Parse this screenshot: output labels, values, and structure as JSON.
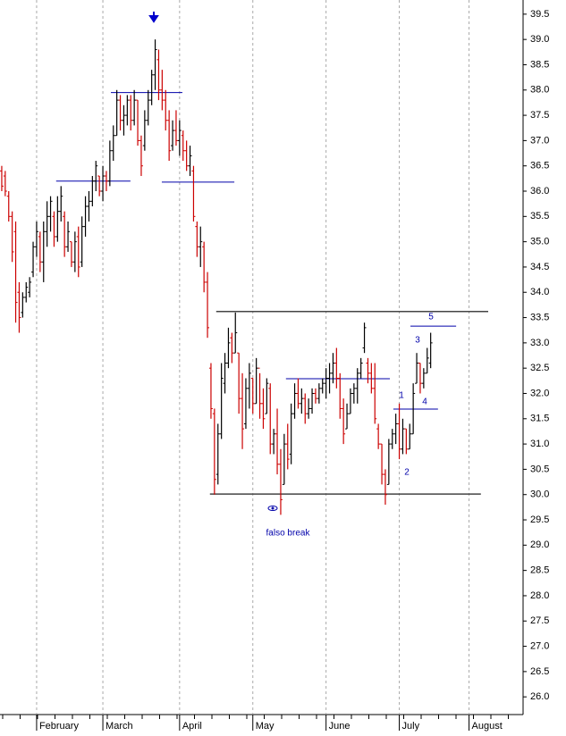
{
  "chart_data": {
    "type": "ohlc",
    "x": [
      0,
      1,
      2,
      3,
      4,
      5,
      6,
      7,
      8,
      9,
      10,
      11,
      12,
      13,
      14,
      15,
      16,
      17,
      18,
      19,
      20,
      21,
      22,
      23,
      24,
      25,
      26,
      27,
      28,
      29,
      30,
      31,
      32,
      33,
      34,
      35,
      36,
      37,
      38,
      39,
      40,
      41,
      42,
      43,
      44,
      45,
      46,
      47,
      48,
      49,
      50,
      51,
      52,
      53,
      54,
      55,
      56,
      57,
      58,
      59,
      60,
      61,
      62,
      63,
      64,
      65,
      66,
      67,
      68,
      69,
      70,
      71,
      72,
      73,
      74,
      75,
      76,
      77,
      78,
      79,
      80,
      81,
      82,
      83,
      84,
      85,
      86,
      87,
      88,
      89,
      90,
      91,
      92,
      93,
      94,
      95,
      96,
      97,
      98,
      99,
      100,
      101,
      102,
      103,
      104,
      105,
      106,
      107,
      108,
      109,
      110,
      111,
      112,
      113,
      114,
      115,
      116,
      117,
      118,
      119,
      120,
      121,
      122,
      123
    ],
    "open": [
      36.4,
      36.3,
      35.9,
      35.5,
      35.2,
      34.0,
      33.6,
      33.9,
      34.0,
      34.4,
      34.9,
      35.1,
      34.6,
      35.2,
      35.5,
      35.5,
      35.1,
      35.6,
      35.5,
      34.9,
      35.0,
      34.6,
      35.1,
      34.6,
      35.3,
      35.7,
      35.8,
      36.2,
      36.3,
      36.0,
      36.3,
      36.2,
      36.8,
      37.1,
      37.8,
      37.4,
      37.5,
      37.8,
      37.4,
      37.8,
      37.0,
      36.9,
      37.4,
      37.8,
      38.3,
      38.6,
      38.0,
      37.8,
      37.4,
      36.9,
      37.2,
      37.0,
      37.1,
      36.8,
      36.5,
      36.4,
      35.3,
      34.9,
      34.9,
      34.2,
      32.5,
      31.6,
      30.4,
      31.2,
      32.2,
      32.6,
      33.1,
      32.8,
      32.8,
      31.9,
      31.4,
      32.1,
      32.3,
      31.8,
      32.5,
      31.8,
      31.6,
      32.1,
      31.0,
      31.2,
      30.6,
      30.2,
      31.0,
      30.8,
      31.6,
      32.0,
      31.8,
      31.9,
      31.6,
      31.7,
      32.0,
      31.9,
      32.1,
      32.2,
      32.3,
      32.4,
      32.6,
      32.3,
      31.7,
      31.3,
      31.6,
      32.0,
      32.1,
      32.4,
      32.9,
      32.6,
      32.4,
      32.1,
      31.3,
      31.0,
      30.4,
      30.2,
      31.0,
      31.2,
      31.4,
      30.9,
      31.3,
      30.9,
      31.2,
      32.2,
      32.6,
      32.2,
      32.4,
      32.6
    ],
    "high": [
      36.5,
      36.4,
      36.0,
      35.6,
      35.4,
      34.2,
      34.0,
      34.2,
      34.3,
      35.0,
      35.4,
      35.2,
      35.4,
      35.8,
      35.9,
      35.6,
      35.9,
      36.1,
      35.6,
      35.4,
      35.0,
      35.2,
      35.3,
      35.5,
      35.9,
      36.0,
      36.3,
      36.6,
      36.3,
      36.5,
      36.4,
      37.0,
      37.3,
      38.0,
      37.9,
      37.7,
      37.9,
      37.9,
      38.0,
      37.8,
      37.1,
      37.6,
      38.0,
      38.4,
      39.0,
      38.8,
      38.4,
      38.0,
      37.6,
      37.4,
      37.6,
      37.4,
      37.2,
      37.0,
      36.9,
      36.5,
      35.4,
      35.3,
      35.0,
      34.4,
      32.6,
      31.7,
      31.4,
      32.6,
      32.8,
      33.3,
      33.2,
      33.6,
      32.8,
      32.4,
      32.3,
      32.6,
      32.3,
      32.7,
      32.4,
      32.1,
      32.3,
      32.2,
      31.3,
      31.7,
      30.9,
      31.2,
      31.4,
      31.8,
      32.2,
      32.3,
      32.1,
      32.0,
      31.9,
      32.1,
      32.1,
      32.2,
      32.3,
      32.5,
      32.6,
      32.8,
      32.9,
      32.4,
      31.9,
      31.8,
      32.1,
      32.2,
      32.5,
      32.7,
      33.4,
      32.7,
      32.6,
      32.6,
      31.4,
      31.0,
      30.5,
      31.1,
      31.3,
      31.6,
      31.8,
      31.5,
      31.3,
      31.4,
      32.2,
      32.8,
      32.6,
      32.5,
      32.9,
      33.2
    ],
    "low": [
      36.0,
      35.9,
      35.4,
      34.6,
      33.4,
      33.2,
      33.5,
      33.8,
      33.9,
      34.3,
      34.7,
      34.4,
      34.2,
      34.9,
      35.2,
      34.9,
      35.0,
      35.4,
      34.7,
      34.8,
      34.5,
      34.4,
      34.3,
      34.5,
      35.1,
      35.4,
      35.7,
      36.0,
      35.9,
      35.8,
      36.0,
      36.1,
      36.6,
      37.1,
      37.2,
      37.1,
      37.3,
      37.2,
      37.3,
      36.9,
      36.3,
      36.8,
      37.3,
      37.7,
      38.0,
      37.8,
      37.6,
      37.2,
      36.6,
      36.8,
      36.9,
      36.7,
      36.6,
      36.4,
      36.3,
      35.4,
      34.7,
      34.5,
      34.0,
      33.1,
      31.5,
      30.0,
      30.2,
      31.1,
      32.0,
      32.5,
      32.6,
      32.8,
      31.6,
      30.9,
      31.3,
      31.7,
      31.6,
      31.8,
      31.5,
      31.3,
      31.6,
      30.8,
      30.8,
      30.4,
      29.6,
      30.2,
      30.5,
      30.6,
      31.5,
      31.7,
      31.6,
      31.4,
      31.5,
      31.6,
      31.8,
      31.8,
      32.0,
      31.9,
      32.0,
      32.2,
      32.1,
      31.5,
      31.0,
      31.3,
      31.6,
      31.8,
      31.8,
      32.3,
      32.8,
      32.2,
      32.0,
      31.4,
      30.9,
      30.2,
      29.8,
      30.2,
      30.9,
      31.0,
      30.7,
      30.8,
      30.8,
      30.9,
      31.2,
      32.2,
      32.0,
      32.1,
      32.4,
      32.5
    ],
    "close": [
      36.1,
      36.0,
      35.5,
      34.8,
      33.8,
      33.5,
      33.9,
      34.1,
      34.2,
      34.9,
      35.2,
      34.6,
      35.2,
      35.5,
      35.8,
      35.1,
      35.6,
      35.9,
      34.9,
      35.2,
      34.6,
      35.0,
      34.5,
      35.3,
      35.7,
      35.8,
      36.2,
      36.5,
      36.0,
      36.3,
      36.2,
      36.8,
      37.1,
      37.8,
      37.4,
      37.5,
      37.8,
      37.4,
      37.8,
      37.0,
      36.5,
      37.4,
      37.8,
      38.3,
      38.8,
      38.0,
      37.8,
      37.4,
      36.8,
      37.2,
      37.0,
      37.2,
      36.8,
      36.5,
      36.7,
      35.5,
      34.9,
      35.0,
      34.2,
      33.3,
      31.7,
      30.3,
      31.2,
      32.3,
      32.6,
      33.0,
      32.8,
      33.2,
      31.9,
      31.3,
      32.1,
      32.4,
      31.8,
      32.5,
      31.8,
      31.5,
      32.2,
      31.0,
      31.2,
      30.6,
      29.9,
      31.0,
      30.7,
      31.6,
      32.0,
      31.8,
      31.9,
      31.6,
      31.7,
      32.0,
      31.9,
      32.1,
      32.2,
      32.3,
      32.4,
      32.6,
      32.3,
      31.7,
      31.2,
      31.6,
      32.0,
      32.1,
      32.4,
      32.6,
      33.3,
      32.4,
      32.1,
      31.5,
      31.0,
      30.4,
      30.0,
      31.0,
      31.2,
      31.4,
      30.9,
      31.3,
      30.9,
      31.2,
      32.0,
      32.6,
      32.2,
      32.4,
      32.7,
      33.0
    ],
    "up_color": "#000000",
    "down_color": "#cc0000",
    "xlim": [
      -0.5,
      149.5
    ],
    "xticks": [
      {
        "value": 10,
        "label": "February"
      },
      {
        "value": 29,
        "label": "March"
      },
      {
        "value": 51,
        "label": "April"
      },
      {
        "value": 72,
        "label": "May"
      },
      {
        "value": 93,
        "label": "June"
      },
      {
        "value": 114,
        "label": "July"
      },
      {
        "value": 134,
        "label": "August"
      }
    ],
    "ylim": [
      25.65,
      39.78
    ],
    "yticks": [
      {
        "value": 26,
        "label": "26.0"
      },
      26.5,
      {
        "value": 27,
        "label": "27.0"
      },
      27.5,
      {
        "value": 28,
        "label": "28.0"
      },
      28.5,
      {
        "value": 29,
        "label": "29.0"
      },
      29.5,
      {
        "value": 30,
        "label": "30.0"
      },
      30.5,
      {
        "value": 31,
        "label": "31.0"
      },
      31.5,
      {
        "value": 32,
        "label": "32.0"
      },
      32.5,
      {
        "value": 33,
        "label": "33.0"
      },
      33.5,
      {
        "value": 34,
        "label": "34.0"
      },
      34.5,
      {
        "value": 35,
        "label": "35.0"
      },
      35.5,
      {
        "value": 36,
        "label": "36.0"
      },
      36.5,
      {
        "value": 37,
        "label": "37.0"
      },
      37.5,
      {
        "value": 38,
        "label": "38.0"
      },
      38.5,
      {
        "value": 39,
        "label": "39.0"
      },
      39.5
    ],
    "grid": true,
    "lines": [
      {
        "x": [
          15.6,
          36.9
        ],
        "y": 36.2,
        "color": "#0000aa"
      },
      {
        "x": [
          31.3,
          51.8
        ],
        "y": 37.95,
        "color": "#0000aa"
      },
      {
        "x": [
          45.9,
          66.7
        ],
        "y": 36.18,
        "color": "#0000aa"
      },
      {
        "x": [
          81.5,
          111.3
        ],
        "y": 32.29,
        "color": "#0000aa"
      },
      {
        "x": [
          112.3,
          125.1
        ],
        "y": 31.69,
        "color": "#0000aa"
      },
      {
        "x": [
          117.2,
          130.3
        ],
        "y": 33.33,
        "color": "#0000aa"
      },
      {
        "x": [
          61.5,
          139.5
        ],
        "y": 33.62,
        "color": "#444444"
      },
      {
        "x": [
          59.7,
          137.4
        ],
        "y": 30.01,
        "color": "#444444"
      }
    ],
    "annotations": [
      "falso break",
      "1",
      "2",
      "3",
      "4",
      "5"
    ]
  }
}
